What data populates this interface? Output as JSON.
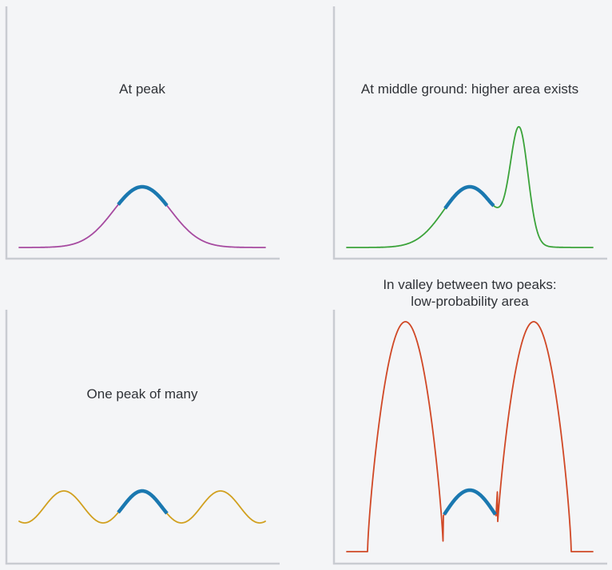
{
  "highlight_color": "#1a78b0",
  "axis_color": "#c9ccd2",
  "panels": [
    {
      "id": "at-peak",
      "title": "At peak",
      "curve_shape": "single-peak",
      "curve_color": "#a64aa0"
    },
    {
      "id": "middle-ground",
      "title": "At middle ground: higher area exists",
      "curve_shape": "moderate-hill-then-taller-narrow-spike",
      "curve_color": "#3ba33a"
    },
    {
      "id": "one-of-many",
      "title": "One peak of many",
      "curve_shape": "repeating-equal-peaks",
      "curve_color": "#d1a01f"
    },
    {
      "id": "valley",
      "title_lines": [
        "In valley between two peaks:",
        "low-probability area"
      ],
      "curve_shape": "small-hill-between-two-tall-peaks",
      "curve_color": "#d04826"
    }
  ]
}
